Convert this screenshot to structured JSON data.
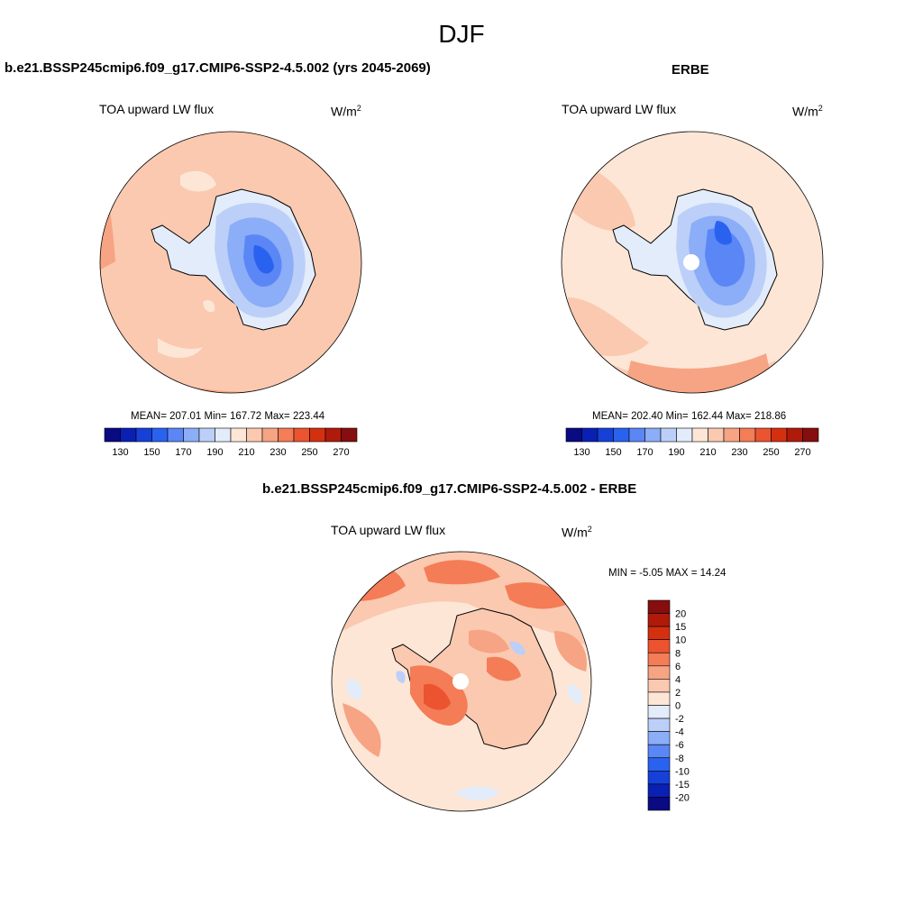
{
  "figure": {
    "title": "DJF"
  },
  "panels": [
    {
      "title": "b.e21.BSSP245cmip6.f09_g17.CMIP6-SSP2-4.5.002 (yrs 2045-2069)",
      "variable": "TOA upward LW flux",
      "unit_base": "W/m",
      "unit_exp": "2",
      "stats": "MEAN= 207.01  Min= 167.72  Max= 223.44"
    },
    {
      "title": "ERBE",
      "variable": "TOA upward LW flux",
      "unit_base": "W/m",
      "unit_exp": "2",
      "stats": "MEAN= 202.40  Min= 162.44  Max= 218.86"
    },
    {
      "title": "b.e21.BSSP245cmip6.f09_g17.CMIP6-SSP2-4.5.002 - ERBE",
      "variable": "TOA upward LW flux",
      "unit_base": "W/m",
      "unit_exp": "2",
      "stats": "MIN =  -5.05 MAX =  14.24"
    }
  ],
  "colorbar_main": {
    "colors": [
      "#0a0a82",
      "#0a20b4",
      "#1541d8",
      "#2a62f0",
      "#5a87f5",
      "#8cadf7",
      "#bccff8",
      "#e2ecfa",
      "#fde6d6",
      "#fac9b0",
      "#f6a484",
      "#f47c56",
      "#ec5330",
      "#d43010",
      "#b01a0a",
      "#860e0e"
    ],
    "tick_labels": [
      "130",
      "150",
      "170",
      "190",
      "210",
      "230",
      "250",
      "270"
    ]
  },
  "colorbar_diff": {
    "colors": [
      "#0a0a82",
      "#0a20b4",
      "#1541d8",
      "#2a62f0",
      "#5a87f5",
      "#8cadf7",
      "#bccff8",
      "#e2ecfa",
      "#fde6d6",
      "#fac9b0",
      "#f6a484",
      "#f47c56",
      "#ec5330",
      "#d43010",
      "#b01a0a",
      "#860e0e"
    ],
    "tick_labels": [
      "20",
      "15",
      "10",
      "8",
      "6",
      "4",
      "2",
      "0",
      "-2",
      "-4",
      "-6",
      "-8",
      "-10",
      "-15",
      "-20"
    ]
  }
}
